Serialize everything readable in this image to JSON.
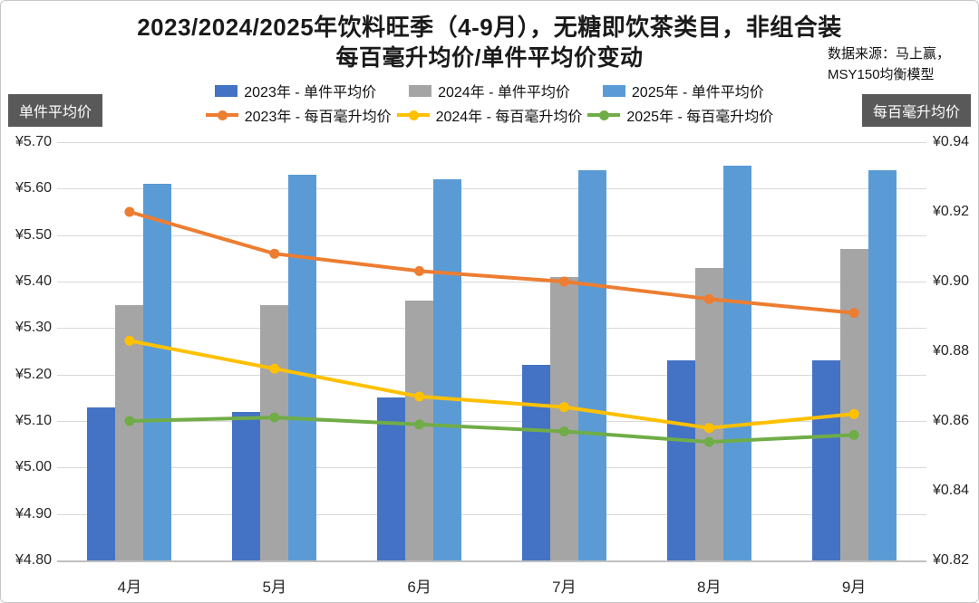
{
  "title": {
    "line1": "2023/2024/2025年饮料旺季（4-9月），无糖即饮茶类目，非组合装",
    "line2": "每百毫升均价/单件平均价变动"
  },
  "source": {
    "line1": "数据来源：马上赢，",
    "line2": "MSY150均衡模型"
  },
  "chart_data": {
    "type": "combo-bar-line",
    "categories": [
      "4月",
      "5月",
      "6月",
      "7月",
      "8月",
      "9月"
    ],
    "bar_series": [
      {
        "name": "2023年 - 单件平均价",
        "color": "#4472C4",
        "axis": "left",
        "values": [
          5.13,
          5.12,
          5.15,
          5.22,
          5.23,
          5.23
        ]
      },
      {
        "name": "2024年 - 单件平均价",
        "color": "#A5A5A5",
        "axis": "left",
        "values": [
          5.35,
          5.35,
          5.36,
          5.41,
          5.43,
          5.47
        ]
      },
      {
        "name": "2025年 - 单件平均价",
        "color": "#5B9BD5",
        "axis": "left",
        "values": [
          5.61,
          5.63,
          5.62,
          5.64,
          5.65,
          5.64
        ]
      }
    ],
    "line_series": [
      {
        "name": "2023年 - 每百毫升均价",
        "color": "#ED7D31",
        "axis": "right",
        "values": [
          0.92,
          0.908,
          0.903,
          0.9,
          0.895,
          0.891
        ]
      },
      {
        "name": "2024年 - 每百毫升均价",
        "color": "#FFC000",
        "axis": "right",
        "values": [
          0.883,
          0.875,
          0.867,
          0.864,
          0.858,
          0.862
        ]
      },
      {
        "name": "2025年 - 每百毫升均价",
        "color": "#70AD47",
        "axis": "right",
        "values": [
          0.86,
          0.861,
          0.859,
          0.857,
          0.854,
          0.856
        ]
      }
    ],
    "left_axis": {
      "title": "单件平均价",
      "min": 4.8,
      "max": 5.7,
      "step": 0.1,
      "ticks": [
        "¥5.70",
        "¥5.60",
        "¥5.50",
        "¥5.40",
        "¥5.30",
        "¥5.20",
        "¥5.10",
        "¥5.00",
        "¥4.90",
        "¥4.80"
      ]
    },
    "right_axis": {
      "title": "每百毫升均价",
      "min": 0.82,
      "max": 0.94,
      "step": 0.02,
      "ticks": [
        "¥0.94",
        "¥0.92",
        "¥0.90",
        "¥0.88",
        "¥0.86",
        "¥0.84",
        "¥0.82"
      ]
    },
    "grid": "horizontal",
    "legend_position": "top"
  }
}
